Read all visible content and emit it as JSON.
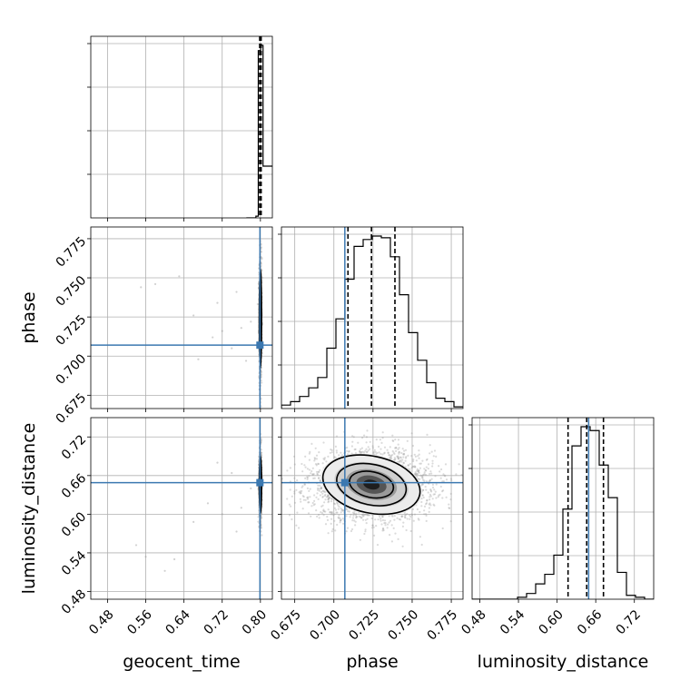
{
  "colors": {
    "truth": "#3b78b0",
    "histogram": "#000000",
    "grid": "#b0b0b0",
    "frame": "#000000",
    "scatter": "#999999"
  },
  "chart_data": {
    "type": "corner",
    "parameters": [
      "geocent_time",
      "phase",
      "luminosity_distance"
    ],
    "axis_labels": {
      "geocent_time": "geocent_time",
      "phase": "phase",
      "luminosity_distance": "luminosity_distance"
    },
    "grid": true,
    "ranges": {
      "geocent_time": [
        0.445,
        0.825
      ],
      "phase": [
        0.6665,
        0.7825
      ],
      "luminosity_distance": [
        0.468,
        0.75
      ]
    },
    "ticks": {
      "geocent_time": [
        0.48,
        0.56,
        0.64,
        0.72,
        0.8
      ],
      "phase": [
        0.675,
        0.7,
        0.725,
        0.75,
        0.775
      ],
      "luminosity_distance": [
        0.48,
        0.54,
        0.6,
        0.66,
        0.72
      ]
    },
    "tick_labels": {
      "geocent_time": [
        "0.48",
        "0.56",
        "0.64",
        "0.72",
        "0.80"
      ],
      "phase": [
        "0.675",
        "0.700",
        "0.725",
        "0.750",
        "0.775"
      ],
      "luminosity_distance": [
        "0.48",
        "0.54",
        "0.60",
        "0.66",
        "0.72"
      ]
    },
    "truths": {
      "geocent_time": 0.799,
      "phase": 0.707,
      "luminosity_distance": 0.649
    },
    "quantiles": {
      "geocent_time": [
        0.7985,
        0.8,
        0.8015
      ],
      "phase": [
        0.709,
        0.724,
        0.739
      ],
      "luminosity_distance": [
        0.617,
        0.646,
        0.672
      ]
    },
    "histograms": {
      "geocent_time": {
        "edges": [
          0.7705,
          0.7755,
          0.7805,
          0.7855,
          0.7905,
          0.7955,
          0.8005,
          0.8055,
          0.8105,
          0.8155,
          0.8205,
          0.825
        ],
        "counts": [
          0,
          0,
          0,
          0,
          1,
          97,
          100,
          30,
          30,
          30,
          30
        ]
      },
      "phase": {
        "edges": [
          0.6665,
          0.6723,
          0.6781,
          0.6839,
          0.6897,
          0.6955,
          0.7013,
          0.7071,
          0.7129,
          0.7187,
          0.7245,
          0.7303,
          0.7361,
          0.7419,
          0.7477,
          0.7535,
          0.7593,
          0.7651,
          0.7709,
          0.7767,
          0.7825
        ],
        "counts": [
          2,
          4,
          7,
          12,
          18,
          35,
          52,
          75,
          94,
          98,
          100,
          99,
          88,
          66,
          44,
          28,
          15,
          6,
          4,
          1
        ]
      },
      "luminosity_distance": {
        "edges": [
          0.468,
          0.4821,
          0.4962,
          0.5103,
          0.5244,
          0.5385,
          0.5526,
          0.5667,
          0.5808,
          0.5949,
          0.609,
          0.6231,
          0.6372,
          0.6513,
          0.6654,
          0.6795,
          0.6936,
          0.7077,
          0.7218,
          0.7359,
          0.75
        ],
        "counts": [
          0,
          0,
          0,
          0,
          0,
          1,
          3,
          8,
          13,
          23,
          47,
          80,
          90,
          88,
          70,
          53,
          14,
          2,
          1,
          0
        ]
      }
    },
    "scatter_2d": {
      "phase_vs_geocent_time": {
        "center": [
          0.8,
          0.724
        ],
        "sd": [
          0.0011,
          0.015
        ],
        "outliers": [
          [
            0.55,
            0.744
          ],
          [
            0.58,
            0.746
          ],
          [
            0.63,
            0.751
          ],
          [
            0.66,
            0.726
          ],
          [
            0.67,
            0.698
          ],
          [
            0.7,
            0.712
          ],
          [
            0.72,
            0.716
          ],
          [
            0.74,
            0.705
          ],
          [
            0.76,
            0.718
          ],
          [
            0.78,
            0.722
          ],
          [
            0.71,
            0.734
          ],
          [
            0.75,
            0.741
          ],
          [
            0.77,
            0.697
          ]
        ]
      },
      "luminosity_distance_vs_geocent_time": {
        "center": [
          0.8,
          0.646
        ],
        "sd": [
          0.0011,
          0.021
        ],
        "outliers": [
          [
            0.54,
            0.552
          ],
          [
            0.56,
            0.534
          ],
          [
            0.6,
            0.512
          ],
          [
            0.62,
            0.53
          ],
          [
            0.66,
            0.588
          ],
          [
            0.69,
            0.617
          ],
          [
            0.72,
            0.6
          ],
          [
            0.74,
            0.664
          ],
          [
            0.76,
            0.61
          ],
          [
            0.78,
            0.64
          ],
          [
            0.75,
            0.573
          ],
          [
            0.71,
            0.68
          ]
        ]
      },
      "luminosity_distance_vs_phase": {
        "center": [
          0.724,
          0.646
        ],
        "sd": [
          0.015,
          0.021
        ],
        "outliers": []
      }
    }
  }
}
